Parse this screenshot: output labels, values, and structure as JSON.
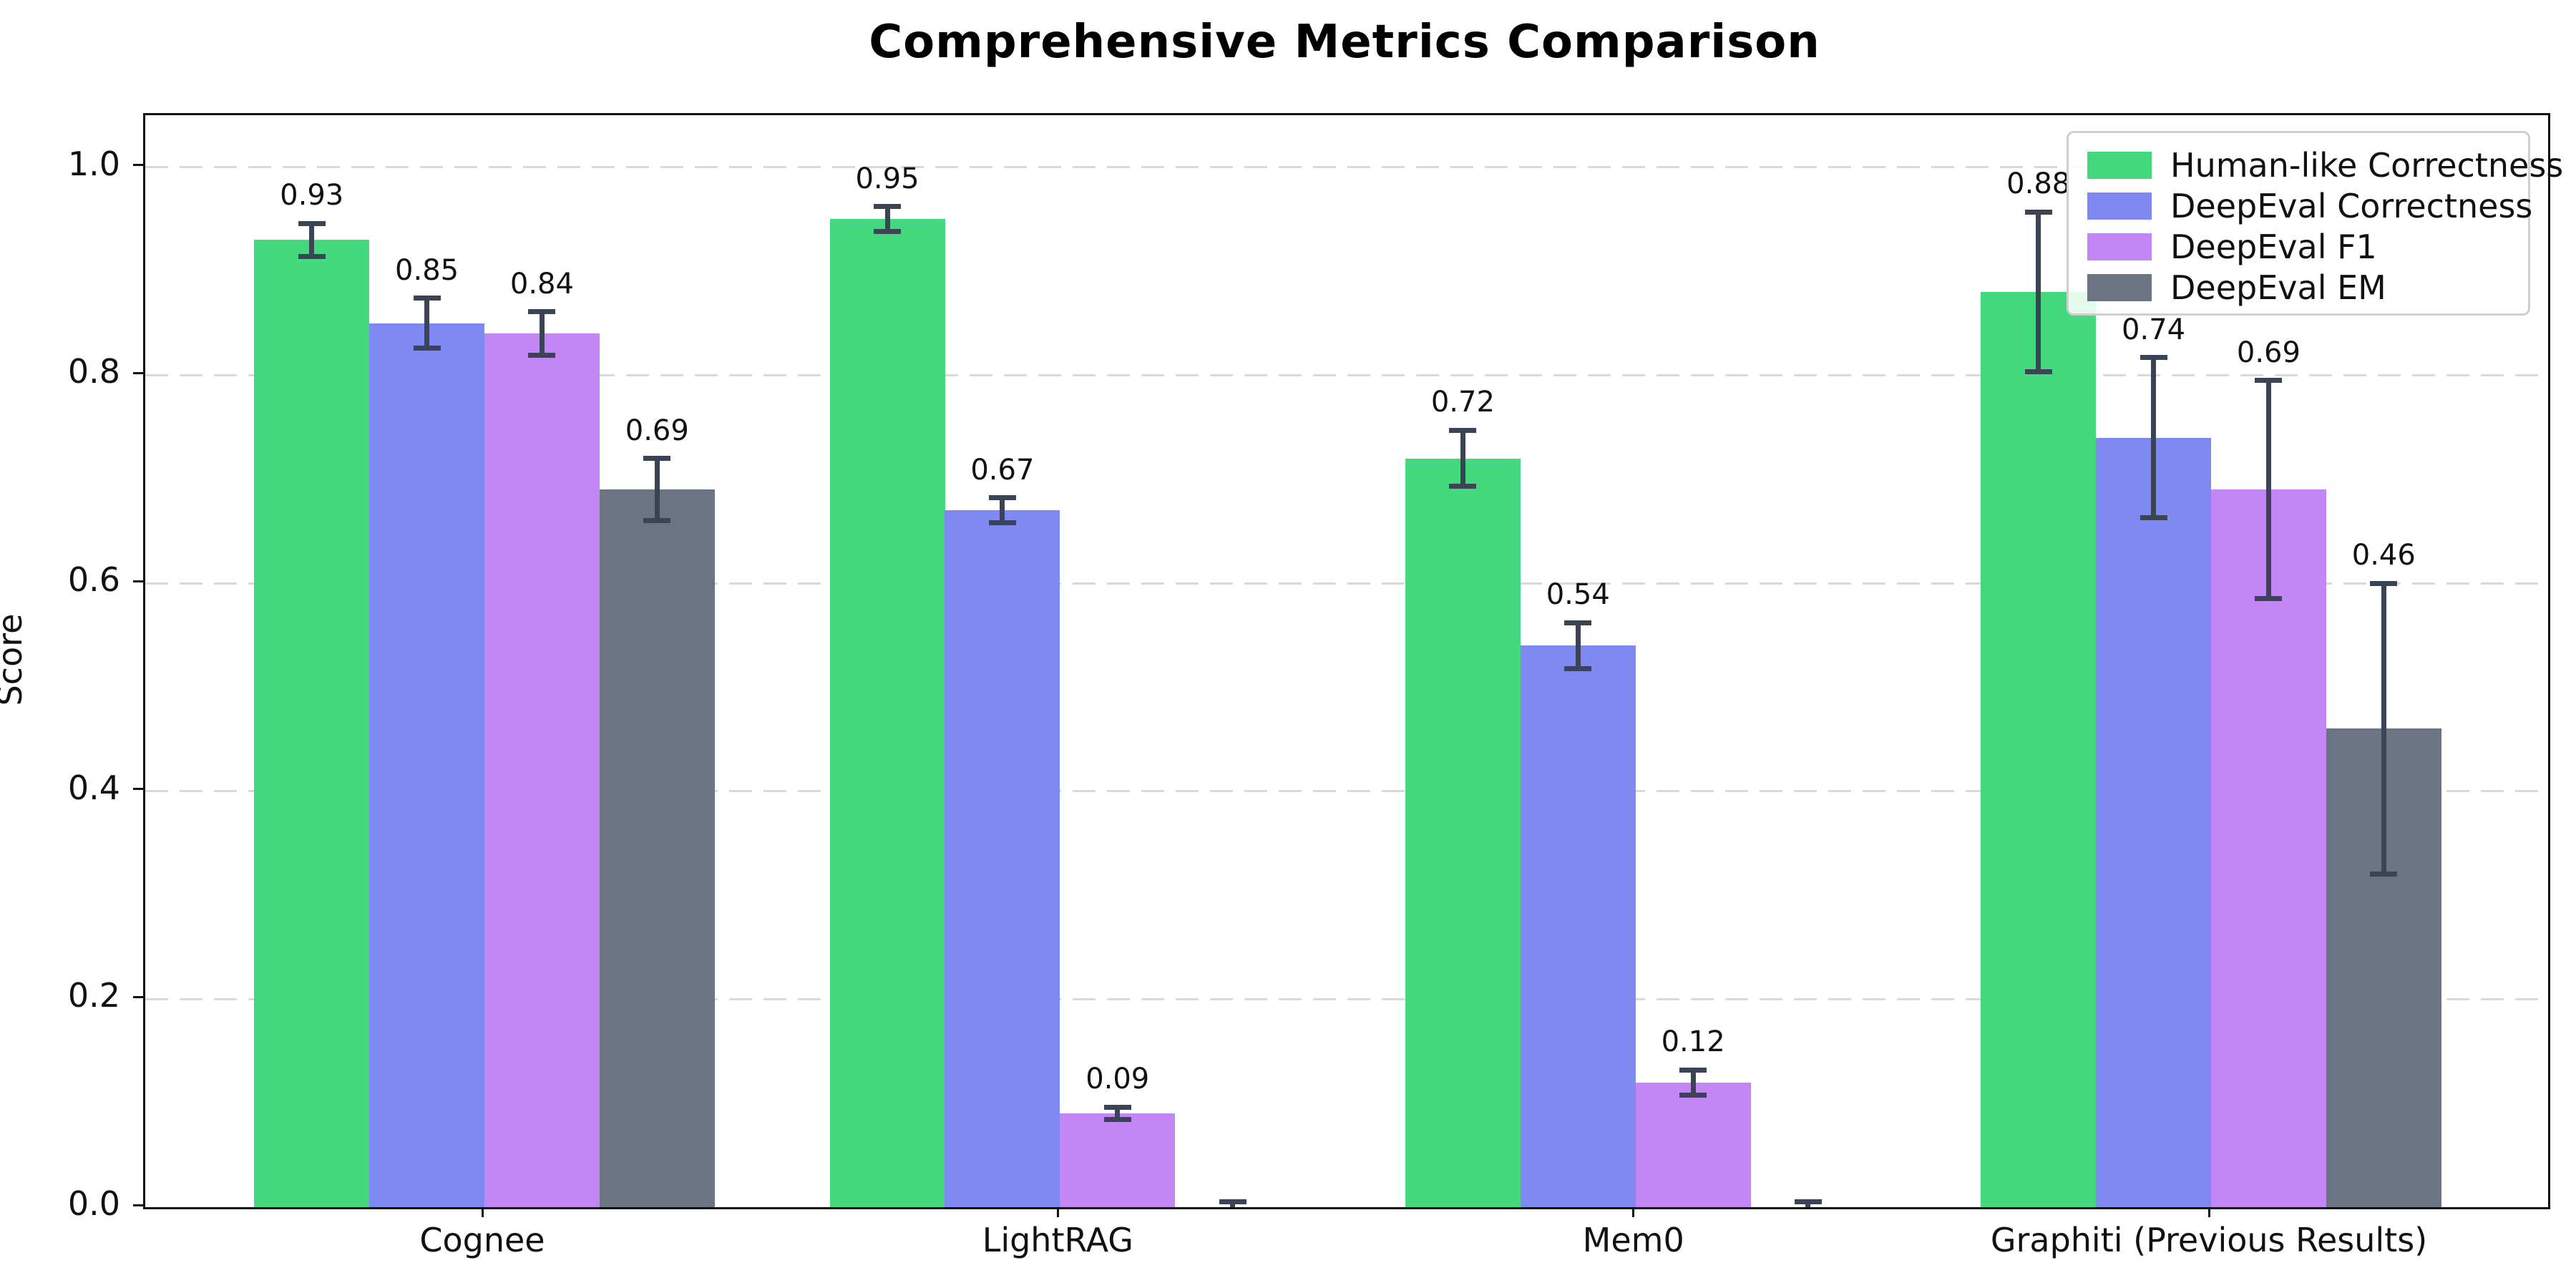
{
  "title": "Comprehensive Metrics Comparison",
  "ylabel": "Score",
  "colors": {
    "human_like": "#44d97e",
    "deepeval_correctness": "#7e89f1",
    "deepeval_f1": "#c287f4",
    "deepeval_em": "#6a7482",
    "error_bar": "#3a4454",
    "gridline": "#d9d9d9",
    "spine": "#111111",
    "legend_border": "#cfcfcf"
  },
  "chart_data": {
    "type": "bar",
    "title": "Comprehensive Metrics Comparison",
    "xlabel": "",
    "ylabel": "Score",
    "categories": [
      "Cognee",
      "LightRAG",
      "Mem0",
      "Graphiti (Previous Results)"
    ],
    "series": [
      {
        "name": "Human-like Correctness",
        "color": "#44d97e",
        "values": [
          0.93,
          0.95,
          0.72,
          0.88
        ],
        "errors": [
          0.016,
          0.012,
          0.027,
          0.077
        ],
        "labels": [
          "0.93",
          "0.95",
          "0.72",
          "0.88"
        ]
      },
      {
        "name": "DeepEval Correctness",
        "color": "#7e89f1",
        "values": [
          0.85,
          0.67,
          0.54,
          0.74
        ],
        "errors": [
          0.024,
          0.012,
          0.022,
          0.077
        ],
        "labels": [
          "0.85",
          "0.67",
          "0.54",
          "0.74"
        ]
      },
      {
        "name": "DeepEval F1",
        "color": "#c287f4",
        "values": [
          0.84,
          0.09,
          0.12,
          0.69
        ],
        "errors": [
          0.021,
          0.006,
          0.012,
          0.105
        ],
        "labels": [
          "0.84",
          "0.09",
          "0.12",
          "0.69"
        ]
      },
      {
        "name": "DeepEval EM",
        "color": "#6a7482",
        "values": [
          0.69,
          0.0,
          0.0,
          0.46
        ],
        "errors": [
          0.03,
          0.005,
          0.005,
          0.14
        ],
        "labels": [
          "0.69",
          "",
          "",
          "0.46"
        ]
      }
    ],
    "ylim": [
      0,
      1.05
    ],
    "yticks": [
      0.0,
      0.2,
      0.4,
      0.6,
      0.8,
      1.0
    ],
    "ytick_labels": [
      "0.0",
      "0.2",
      "0.4",
      "0.6",
      "0.8",
      "1.0"
    ],
    "grid": "horizontal-dashed",
    "legend_position": "upper-right",
    "error_bars": true
  }
}
